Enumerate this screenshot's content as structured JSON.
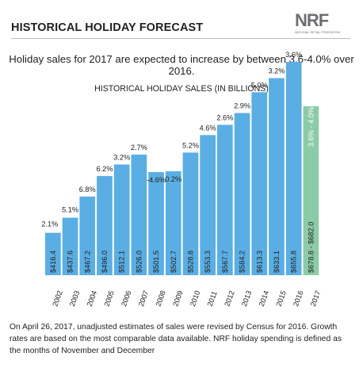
{
  "header": {
    "title": "HISTORICAL HOLIDAY FORECAST",
    "logo_text": "NRF",
    "logo_subtext": "NATIONAL RETAIL FEDERATION"
  },
  "subtitle": "Holiday sales for 2017 are expected to increase by between 3.6-4.0% over 2016.",
  "chart_title": "HISTORICAL HOLIDAY SALES (IN BILLIONS)",
  "footnote": "On April 26, 2017, unadjusted estimates of sales were revised by Census for 2016. Growth rates are based on the most comparable data available. NRF holiday spending is defined as the months of November and December",
  "colors": {
    "bar": "#5aaee3",
    "forecast_bar": "#8bcca6",
    "text": "#222222",
    "rule": "#bdbdbd"
  },
  "chart_data": {
    "type": "bar",
    "title": "HISTORICAL HOLIDAY SALES (IN BILLIONS)",
    "categories": [
      "2002",
      "2003",
      "2004",
      "2005",
      "2006",
      "2007",
      "2008",
      "2009",
      "2010",
      "2011",
      "2012",
      "2013",
      "2014",
      "2015",
      "2016",
      "2017"
    ],
    "values": [
      416.4,
      437.6,
      467.2,
      496.0,
      512.1,
      526.0,
      501.5,
      502.7,
      528.8,
      553.3,
      567.7,
      584.2,
      613.3,
      633.1,
      655.8,
      682.0
    ],
    "value_labels": [
      "$416.4",
      "$437.6",
      "$467.2",
      "$496.0",
      "$512.1",
      "$526.0",
      "$501.5",
      "$502.7",
      "$528.8",
      "$553.3",
      "$567.7",
      "$584.2",
      "$613.3",
      "$633.1",
      "$655.8",
      "$678.8 - $682.0"
    ],
    "growth_labels": [
      "2.1%",
      "5.1%",
      "6.8%",
      "6.2%",
      "3.2%",
      "2.7%",
      "-4.6%",
      "0.2%",
      "5.2%",
      "4.6%",
      "2.6%",
      "2.9%",
      "5.0%",
      "3.2%",
      "3.6%",
      "3.6% - 4.0%"
    ],
    "forecast_category": "2017",
    "ylim": [
      0,
      700
    ],
    "grid": false,
    "xlabel": "",
    "ylabel": ""
  }
}
